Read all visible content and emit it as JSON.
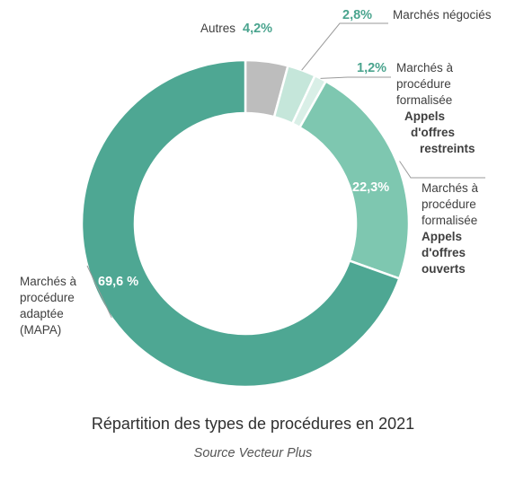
{
  "chart_data": {
    "type": "pie",
    "title": "Répartition des types de procédures en 2021",
    "subtitle": "Source Vecteur Plus",
    "slices": [
      {
        "value": 4.2,
        "display": "4,2%",
        "label_lines": [
          "Autres"
        ],
        "label_bold_lines": [],
        "color": "#bdbdbd"
      },
      {
        "value": 2.8,
        "display": "2,8%",
        "label_lines": [
          "Marchés négociés"
        ],
        "label_bold_lines": [],
        "color": "#c5e6da"
      },
      {
        "value": 1.2,
        "display": "1,2%",
        "label_lines": [
          "Marchés à",
          "procédure",
          "formalisée"
        ],
        "label_bold_lines": [
          "Appels",
          "d'offres",
          "restreints"
        ],
        "color": "#d9efe7"
      },
      {
        "value": 22.3,
        "display": "22,3%",
        "label_lines": [
          "Marchés à",
          "procédure",
          "formalisée"
        ],
        "label_bold_lines": [
          "Appels",
          "d'offres",
          "ouverts"
        ],
        "color": "#7ec7b0"
      },
      {
        "value": 69.6,
        "display": "69,6 %",
        "label_lines": [
          "Marchés à",
          "procédure",
          "adaptée",
          "(MAPA)"
        ],
        "label_bold_lines": [],
        "color": "#4ea793"
      }
    ]
  }
}
